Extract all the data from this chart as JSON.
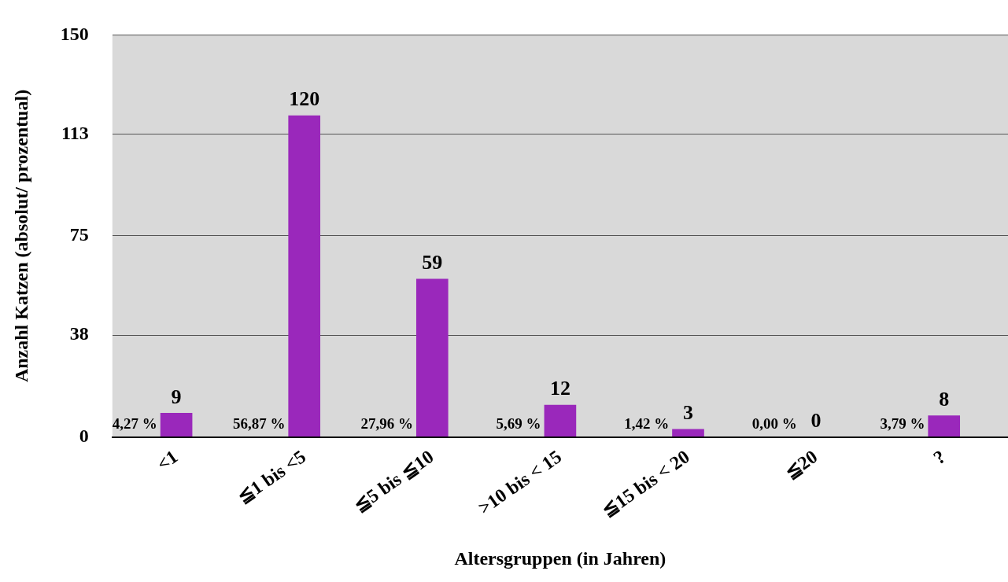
{
  "chart_data": {
    "type": "bar",
    "xlabel": "Altersgruppen (in Jahren)",
    "ylabel": "Anzahl Katzen (absolut/ prozentual)",
    "categories": [
      "<1",
      "≦1 bis <5",
      "≦5 bis ≦10",
      ">10 bis < 15",
      "≦15 bis < 20",
      "≦20",
      "?"
    ],
    "values": [
      9,
      120,
      59,
      12,
      3,
      0,
      8
    ],
    "color": "#9a28bb",
    "data_labels": true,
    "ylim": [
      0,
      150
    ],
    "yticks": [
      0,
      38,
      75,
      113,
      150
    ],
    "grid": "y",
    "annotations": [
      {
        "text": "4,27 %",
        "x": "<1",
        "y": 0
      },
      {
        "text": "56,87 %",
        "x": "≦1 bis <5",
        "y": 0
      },
      {
        "text": "27,96 %",
        "x": "≦5 bis ≦10",
        "y": 0
      },
      {
        "text": "5,69 %",
        "x": ">10 bis < 15",
        "y": 0
      },
      {
        "text": "1,42 %",
        "x": "≦15 bis < 20",
        "y": 0
      },
      {
        "text": "0,00 %",
        "x": "≦20",
        "y": 0
      },
      {
        "text": "3,79 %",
        "x": "?",
        "y": 0
      }
    ]
  }
}
